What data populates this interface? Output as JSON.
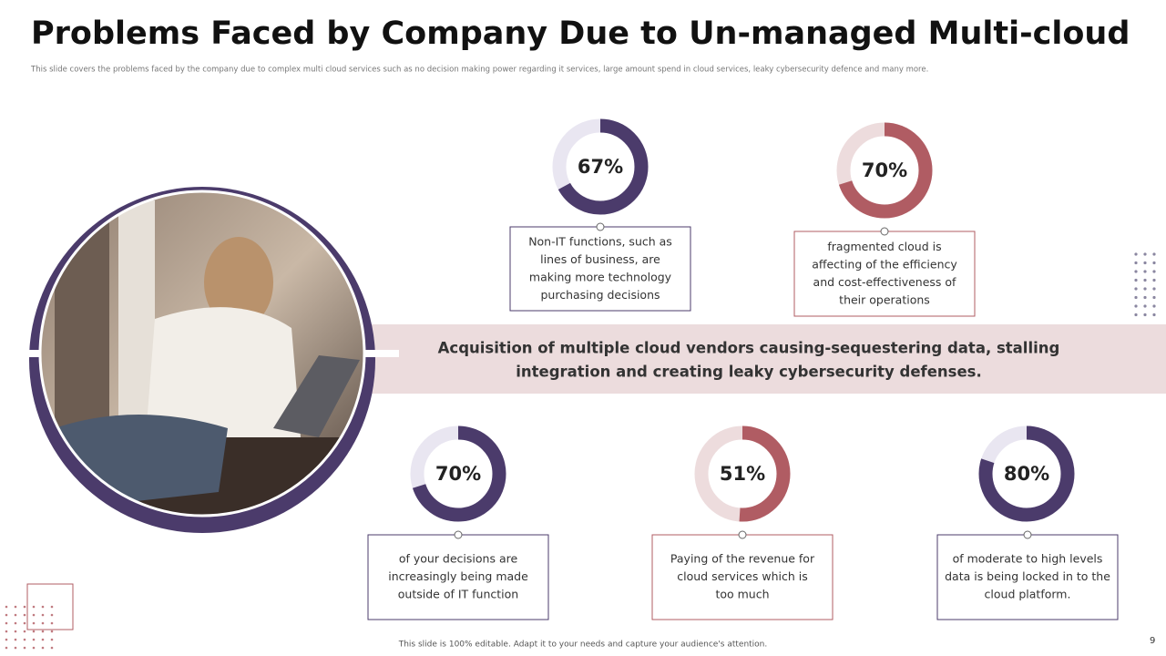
{
  "header": {
    "title": "Problems Faced by Company Due to Un-managed Multi-cloud",
    "subtitle": "This slide covers the problems faced by the company due to complex multi cloud services such as no decision making power regarding it services, large amount spend in cloud services, leaky cybersecurity defence and many more."
  },
  "banner": {
    "lines": [
      "Acquisition of multiple cloud vendors causing-sequestering data, stalling",
      "integration and creating leaky cybersecurity defenses."
    ]
  },
  "stats": [
    {
      "value": 67,
      "value_label": "67%",
      "lines": [
        "Non-IT functions, such as",
        "lines of business, are",
        "making more technology",
        "purchasing decisions"
      ]
    },
    {
      "value": 70,
      "value_label": "70%",
      "lines": [
        "fragmented cloud is",
        "affecting of the efficiency",
        "and cost-effectiveness  of",
        "their operations"
      ]
    },
    {
      "value": 70,
      "value_label": "70%",
      "lines": [
        "of your decisions are",
        "increasingly being made",
        "outside of IT function"
      ]
    },
    {
      "value": 51,
      "value_label": "51%",
      "lines": [
        "Paying of the revenue for",
        "cloud services which is",
        "too much"
      ]
    },
    {
      "value": 80,
      "value_label": "80%",
      "lines": [
        "of moderate to high levels",
        "data is being locked in to the",
        "cloud platform."
      ]
    }
  ],
  "footer": {
    "note": "This slide is 100% editable. Adapt it to your needs and capture your audience's attention.",
    "page": "9"
  }
}
